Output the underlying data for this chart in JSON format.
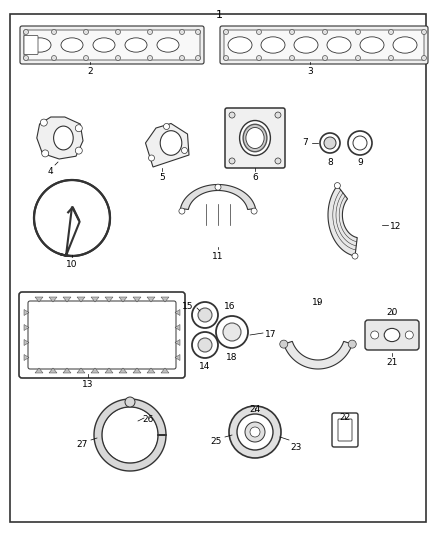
{
  "title": "1",
  "bg_color": "#ffffff",
  "border_color": "#000000",
  "text_color": "#000000",
  "fig_width": 4.38,
  "fig_height": 5.33,
  "dpi": 100
}
